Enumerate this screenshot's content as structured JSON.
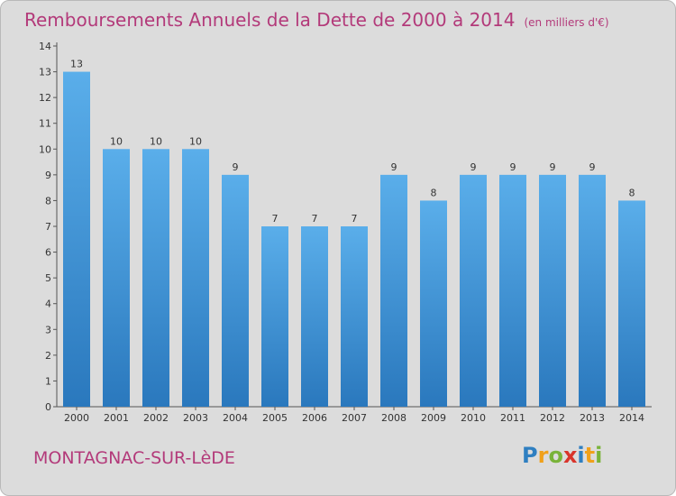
{
  "title": "Remboursements Annuels de la Dette de 2000 à 2014",
  "subtitle": "(en milliers d'€)",
  "commune": "MONTAGNAC-SUR-LèDE",
  "logo": "Proxiti",
  "colors": {
    "title": "#b33a7a",
    "bar_light": "#5aaeea",
    "bar_dark": "#2a78bd",
    "background": "#dcdcdc"
  },
  "chart_data": {
    "type": "bar",
    "title": "Remboursements Annuels de la Dette de 2000 à 2014",
    "subtitle": "(en milliers d'€)",
    "categories": [
      "2000",
      "2001",
      "2002",
      "2003",
      "2004",
      "2005",
      "2006",
      "2007",
      "2008",
      "2009",
      "2010",
      "2011",
      "2012",
      "2013",
      "2014"
    ],
    "values": [
      13,
      10,
      10,
      10,
      9,
      7,
      7,
      7,
      9,
      8,
      9,
      9,
      9,
      9,
      8
    ],
    "ylim": [
      0,
      14
    ],
    "yticks": [
      "0",
      "1",
      "2",
      "3",
      "4",
      "5",
      "6",
      "7",
      "8",
      "9",
      "10",
      "11",
      "12",
      "13",
      "14"
    ],
    "grid": false,
    "legend": "none"
  }
}
